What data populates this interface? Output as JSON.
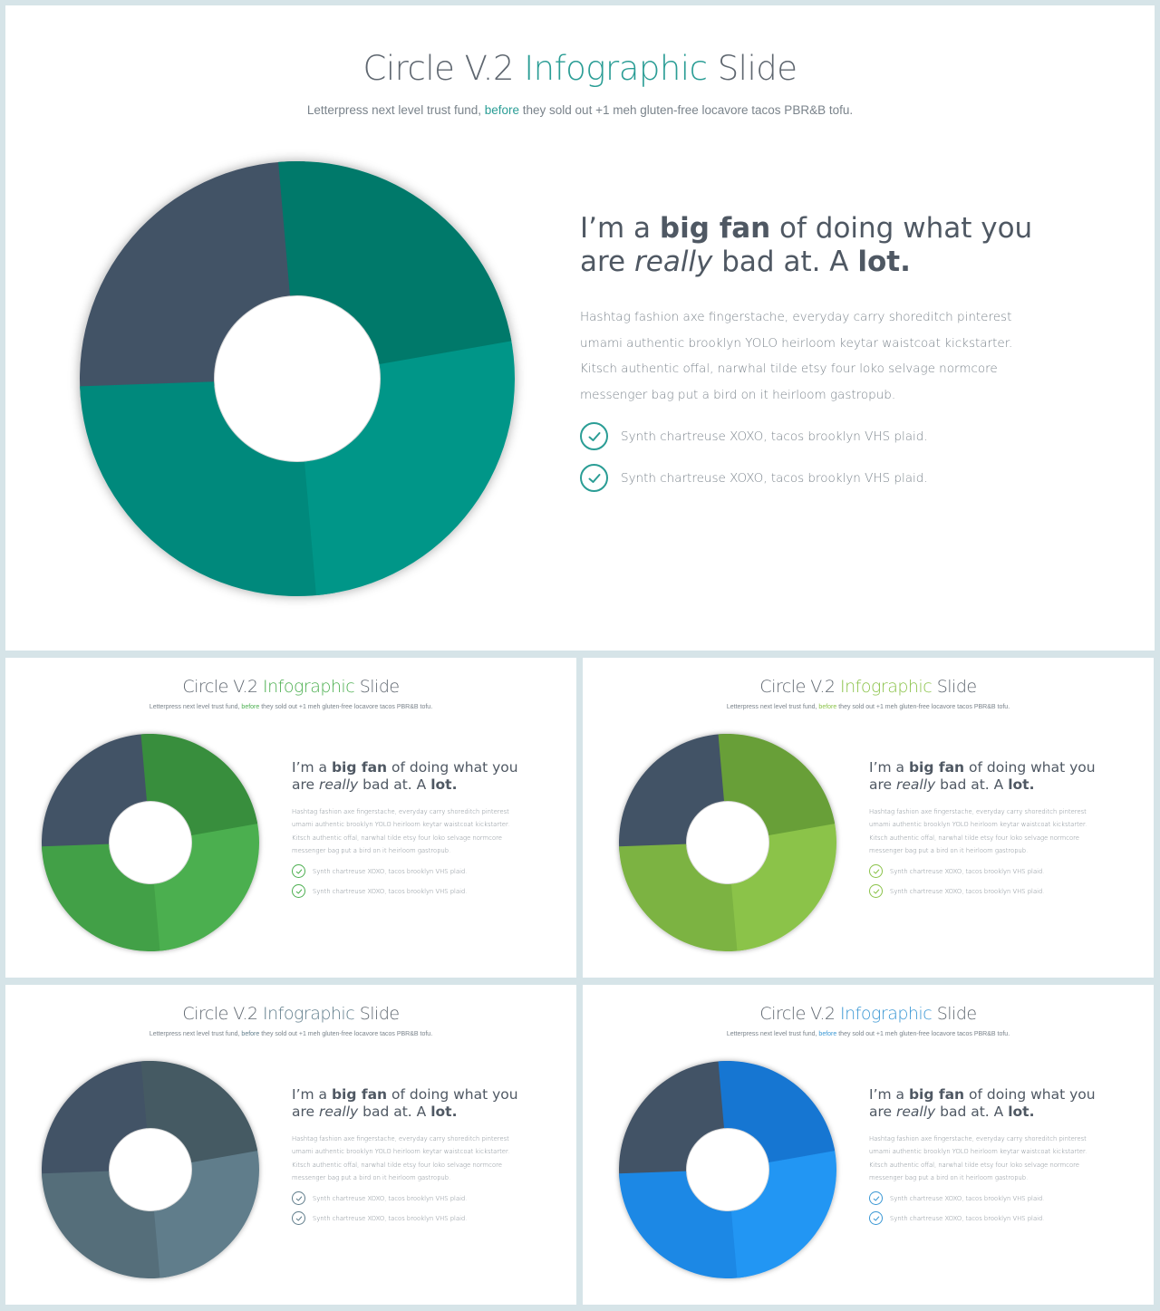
{
  "slides": [
    {
      "id": "main",
      "title_part1": "Circle V.2 ",
      "title_accent": "Infographic",
      "title_part2": " Slide",
      "subtitle_part1": "Letterpress next level trust fund, ",
      "subtitle_accent": "before",
      "subtitle_part2": " they sold out +1 meh gluten-free locavore tacos PBR&B tofu.",
      "heading": {
        "p1": "I’m a ",
        "b1": "big fan",
        "p2": " of doing what you are ",
        "i1": "really",
        "p3": " bad at. A ",
        "b2": "lot."
      },
      "body": "Hashtag fashion axe fingerstache, everyday carry shoreditch pinterest umami authentic brooklyn YOLO heirloom  keytar waistcoat kickstarter. Kitsch authentic offal, narwhal  tilde etsy four loko selvage normcore messenger bag put a bird on it heirloom  gastropub.",
      "checks": [
        "Synth chartreuse XOXO, tacos brooklyn VHS plaid.",
        "Synth chartreuse XOXO, tacos brooklyn VHS plaid."
      ],
      "colors": {
        "accent": "#2a9d95",
        "seg_top": "#00796b",
        "seg_right": "#009688",
        "seg_bottom": "#00897b",
        "seg_left": "#435266",
        "check": "#2a9d95"
      }
    },
    {
      "id": "green",
      "title_part1": "Circle V.2 ",
      "title_accent": "Infographic",
      "title_part2": " Slide",
      "subtitle_part1": "Letterpress next level trust fund, ",
      "subtitle_accent": "before",
      "subtitle_part2": " they sold out +1 meh gluten-free locavore tacos PBR&B tofu.",
      "heading": {
        "p1": "I’m a ",
        "b1": "big fan",
        "p2": " of doing what you are ",
        "i1": "really",
        "p3": " bad at. A ",
        "b2": "lot."
      },
      "body": "Hashtag fashion axe fingerstache, everyday carry shoreditch pinterest umami authentic brooklyn YOLO heirloom  keytar waistcoat kickstarter. Kitsch authentic offal, narwhal  tilde etsy four loko selvage normcore messenger bag put a bird on it heirloom  gastropub.",
      "checks": [
        "Synth chartreuse XOXO, tacos brooklyn VHS plaid.",
        "Synth chartreuse XOXO, tacos brooklyn VHS plaid."
      ],
      "colors": {
        "accent": "#4caf50",
        "seg_top": "#388e3c",
        "seg_right": "#4caf50",
        "seg_bottom": "#43a047",
        "seg_left": "#435266",
        "check": "#4caf50"
      }
    },
    {
      "id": "lime",
      "title_part1": "Circle V.2 ",
      "title_accent": "Infographic",
      "title_part2": " Slide",
      "subtitle_part1": "Letterpress next level trust fund, ",
      "subtitle_accent": "before",
      "subtitle_part2": " they sold out +1 meh gluten-free locavore tacos PBR&B tofu.",
      "heading": {
        "p1": "I’m a ",
        "b1": "big fan",
        "p2": " of doing what you are ",
        "i1": "really",
        "p3": " bad at. A ",
        "b2": "lot."
      },
      "body": "Hashtag fashion axe fingerstache, everyday carry shoreditch pinterest umami authentic brooklyn YOLO heirloom  keytar waistcoat kickstarter. Kitsch authentic offal, narwhal  tilde etsy four loko selvage normcore messenger bag put a bird on it heirloom  gastropub.",
      "checks": [
        "Synth chartreuse XOXO, tacos brooklyn VHS plaid.",
        "Synth chartreuse XOXO, tacos brooklyn VHS plaid."
      ],
      "colors": {
        "accent": "#8bc34a",
        "seg_top": "#689f38",
        "seg_right": "#8bc34a",
        "seg_bottom": "#7cb342",
        "seg_left": "#435266",
        "check": "#8bc34a"
      }
    },
    {
      "id": "grey",
      "title_part1": "Circle V.2 ",
      "title_accent": "Infographic",
      "title_part2": " Slide",
      "subtitle_part1": "Letterpress next level trust fund, ",
      "subtitle_accent": "before",
      "subtitle_part2": " they sold out +1 meh gluten-free locavore tacos PBR&B tofu.",
      "heading": {
        "p1": "I’m a ",
        "b1": "big fan",
        "p2": " of doing what you are ",
        "i1": "really",
        "p3": " bad at. A ",
        "b2": "lot."
      },
      "body": "Hashtag fashion axe fingerstache, everyday carry shoreditch pinterest umami authentic brooklyn YOLO heirloom  keytar waistcoat kickstarter. Kitsch authentic offal, narwhal  tilde etsy four loko selvage normcore messenger bag put a bird on it heirloom  gastropub.",
      "checks": [
        "Synth chartreuse XOXO, tacos brooklyn VHS plaid.",
        "Synth chartreuse XOXO, tacos brooklyn VHS plaid."
      ],
      "colors": {
        "accent": "#607d8b",
        "seg_top": "#455a64",
        "seg_right": "#607d8b",
        "seg_bottom": "#546e7a",
        "seg_left": "#435266",
        "check": "#607d8b"
      }
    },
    {
      "id": "blue",
      "title_part1": "Circle V.2 ",
      "title_accent": "Infographic",
      "title_part2": " Slide",
      "subtitle_part1": "Letterpress next level trust fund, ",
      "subtitle_accent": "before",
      "subtitle_part2": " they sold out +1 meh gluten-free locavore tacos PBR&B tofu.",
      "heading": {
        "p1": "I’m a ",
        "b1": "big fan",
        "p2": " of doing what you are ",
        "i1": "really",
        "p3": " bad at. A ",
        "b2": "lot."
      },
      "body": "Hashtag fashion axe fingerstache, everyday carry shoreditch pinterest umami authentic brooklyn YOLO heirloom  keytar waistcoat kickstarter. Kitsch authentic offal, narwhal  tilde etsy four loko selvage normcore messenger bag put a bird on it heirloom  gastropub.",
      "checks": [
        "Synth chartreuse XOXO, tacos brooklyn VHS plaid.",
        "Synth chartreuse XOXO, tacos brooklyn VHS plaid."
      ],
      "colors": {
        "accent": "#3a97d4",
        "seg_top": "#1976d2",
        "seg_right": "#2196f3",
        "seg_bottom": "#1e88e5",
        "seg_left": "#435266",
        "check": "#3a97d4"
      }
    }
  ]
}
